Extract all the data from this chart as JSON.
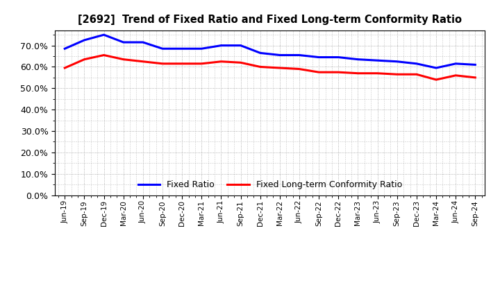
{
  "title": "[2692]  Trend of Fixed Ratio and Fixed Long-term Conformity Ratio",
  "x_labels": [
    "Jun-19",
    "Sep-19",
    "Dec-19",
    "Mar-20",
    "Jun-20",
    "Sep-20",
    "Dec-20",
    "Mar-21",
    "Jun-21",
    "Sep-21",
    "Dec-21",
    "Mar-22",
    "Jun-22",
    "Sep-22",
    "Dec-22",
    "Mar-23",
    "Jun-23",
    "Sep-23",
    "Dec-23",
    "Mar-24",
    "Jun-24",
    "Sep-24"
  ],
  "fixed_ratio": [
    68.5,
    72.5,
    75.0,
    71.5,
    71.5,
    68.5,
    68.5,
    68.5,
    70.0,
    70.0,
    66.5,
    65.5,
    65.5,
    64.5,
    64.5,
    63.5,
    63.0,
    62.5,
    61.5,
    59.5,
    61.5,
    61.0
  ],
  "fixed_lt_ratio": [
    59.5,
    63.5,
    65.5,
    63.5,
    62.5,
    61.5,
    61.5,
    61.5,
    62.5,
    62.0,
    60.0,
    59.5,
    59.0,
    57.5,
    57.5,
    57.0,
    57.0,
    56.5,
    56.5,
    54.0,
    56.0,
    55.0
  ],
  "fixed_ratio_color": "#0000ff",
  "fixed_lt_ratio_color": "#ff0000",
  "ylim": [
    0,
    77
  ],
  "yticks": [
    0,
    10,
    20,
    30,
    40,
    50,
    60,
    70
  ],
  "background_color": "#ffffff",
  "grid_color": "#999999",
  "legend_fixed": "Fixed Ratio",
  "legend_lt": "Fixed Long-term Conformity Ratio"
}
